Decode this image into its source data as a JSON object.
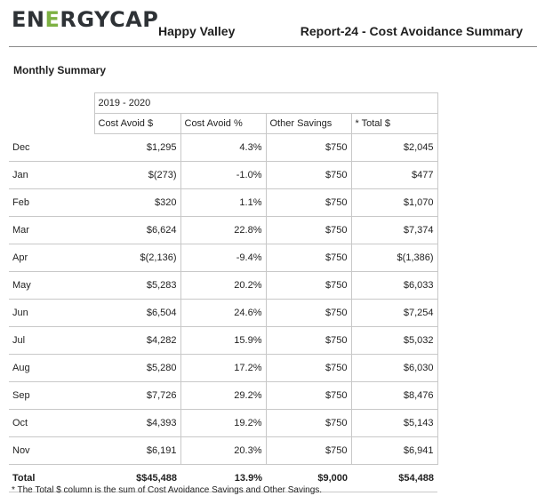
{
  "header": {
    "logo_part1": "EN",
    "logo_accent": "E",
    "logo_part2": "RGYCAP",
    "company": "Happy Valley",
    "report_title": "Report-24 - Cost Avoidance Summary"
  },
  "section_title": "Monthly Summary",
  "table": {
    "period": "2019 - 2020",
    "columns": [
      "Cost Avoid $",
      "Cost Avoid %",
      "Other Savings",
      "* Total $"
    ],
    "rows": [
      {
        "month": "Dec",
        "cost_avoid": "$1,295",
        "cost_pct": "4.3%",
        "other": "$750",
        "total": "$2,045"
      },
      {
        "month": "Jan",
        "cost_avoid": "$(273)",
        "cost_pct": "-1.0%",
        "other": "$750",
        "total": "$477"
      },
      {
        "month": "Feb",
        "cost_avoid": "$320",
        "cost_pct": "1.1%",
        "other": "$750",
        "total": "$1,070"
      },
      {
        "month": "Mar",
        "cost_avoid": "$6,624",
        "cost_pct": "22.8%",
        "other": "$750",
        "total": "$7,374"
      },
      {
        "month": "Apr",
        "cost_avoid": "$(2,136)",
        "cost_pct": "-9.4%",
        "other": "$750",
        "total": "$(1,386)"
      },
      {
        "month": "May",
        "cost_avoid": "$5,283",
        "cost_pct": "20.2%",
        "other": "$750",
        "total": "$6,033"
      },
      {
        "month": "Jun",
        "cost_avoid": "$6,504",
        "cost_pct": "24.6%",
        "other": "$750",
        "total": "$7,254"
      },
      {
        "month": "Jul",
        "cost_avoid": "$4,282",
        "cost_pct": "15.9%",
        "other": "$750",
        "total": "$5,032"
      },
      {
        "month": "Aug",
        "cost_avoid": "$5,280",
        "cost_pct": "17.2%",
        "other": "$750",
        "total": "$6,030"
      },
      {
        "month": "Sep",
        "cost_avoid": "$7,726",
        "cost_pct": "29.2%",
        "other": "$750",
        "total": "$8,476"
      },
      {
        "month": "Oct",
        "cost_avoid": "$4,393",
        "cost_pct": "19.2%",
        "other": "$750",
        "total": "$5,143"
      },
      {
        "month": "Nov",
        "cost_avoid": "$6,191",
        "cost_pct": "20.3%",
        "other": "$750",
        "total": "$6,941"
      }
    ],
    "total": {
      "label": "Total",
      "cost_avoid": "$$45,488",
      "cost_pct": "13.9%",
      "other": "$9,000",
      "total": "$54,488"
    }
  },
  "footnote": "* The Total $ column is the sum of Cost Avoidance Savings and Other Savings.",
  "colors": {
    "logo_dark": "#2e3236",
    "logo_accent": "#7db143",
    "grid": "#c8c8c8"
  }
}
